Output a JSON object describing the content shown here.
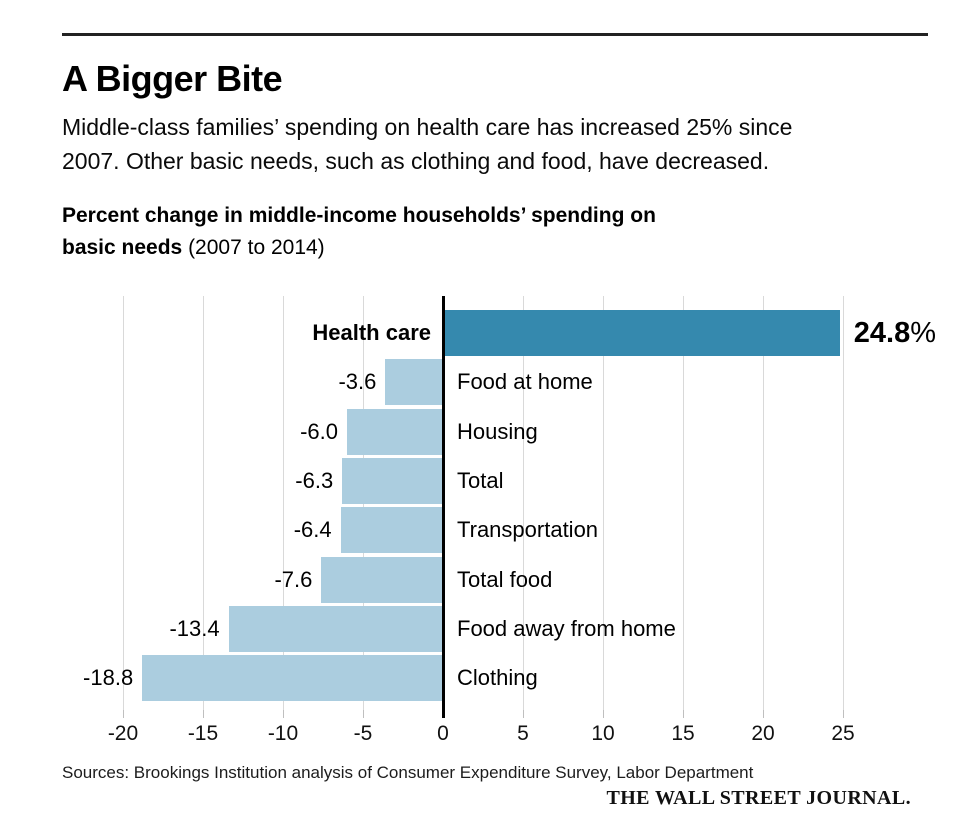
{
  "header": {
    "title": "A Bigger Bite",
    "subtitle_line1": "Middle-class families’ spending on health care has increased 25% since",
    "subtitle_line2": "2007. Other basic needs, such as clothing and food, have decreased.",
    "chart_heading": {
      "line1_bold": "Percent change in middle-income households’ spending on",
      "line2_bold": "basic needs",
      "line2_normal": " (2007 to 2014)"
    }
  },
  "footer": {
    "source_line": "Sources: Brookings Institution analysis of Consumer Expenditure Survey, Labor Department",
    "brand": "THE WALL STREET JOURNAL."
  },
  "colors": {
    "positive_bar": "#3589ae",
    "negative_bar": "#abcddf",
    "gridline": "#d9d9d9",
    "zero_axis": "#000000"
  },
  "chart_data": {
    "type": "bar",
    "orientation": "horizontal",
    "title": "Percent change in middle-income households’ spending on basic needs (2007 to 2014)",
    "xlabel": "",
    "ylabel": "",
    "categories": [
      "Health care",
      "Food at home",
      "Housing",
      "Total",
      "Transportation",
      "Total food",
      "Food away from home",
      "Clothing"
    ],
    "values": [
      24.8,
      -3.6,
      -6.0,
      -6.3,
      -6.4,
      -7.6,
      -13.4,
      -18.8
    ],
    "value_labels": [
      "24.8%",
      "-3.6",
      "-6.0",
      "-6.3",
      "-6.4",
      "-7.6",
      "-13.4",
      "-18.8"
    ],
    "callout": {
      "main": "24.8",
      "suffix": "%"
    },
    "xlim": [
      -20,
      25
    ],
    "xticks": [
      -20,
      -15,
      -10,
      -5,
      0,
      5,
      10,
      15,
      20,
      25
    ],
    "grid": true,
    "legend": "none",
    "highlight_category": "Health care"
  }
}
